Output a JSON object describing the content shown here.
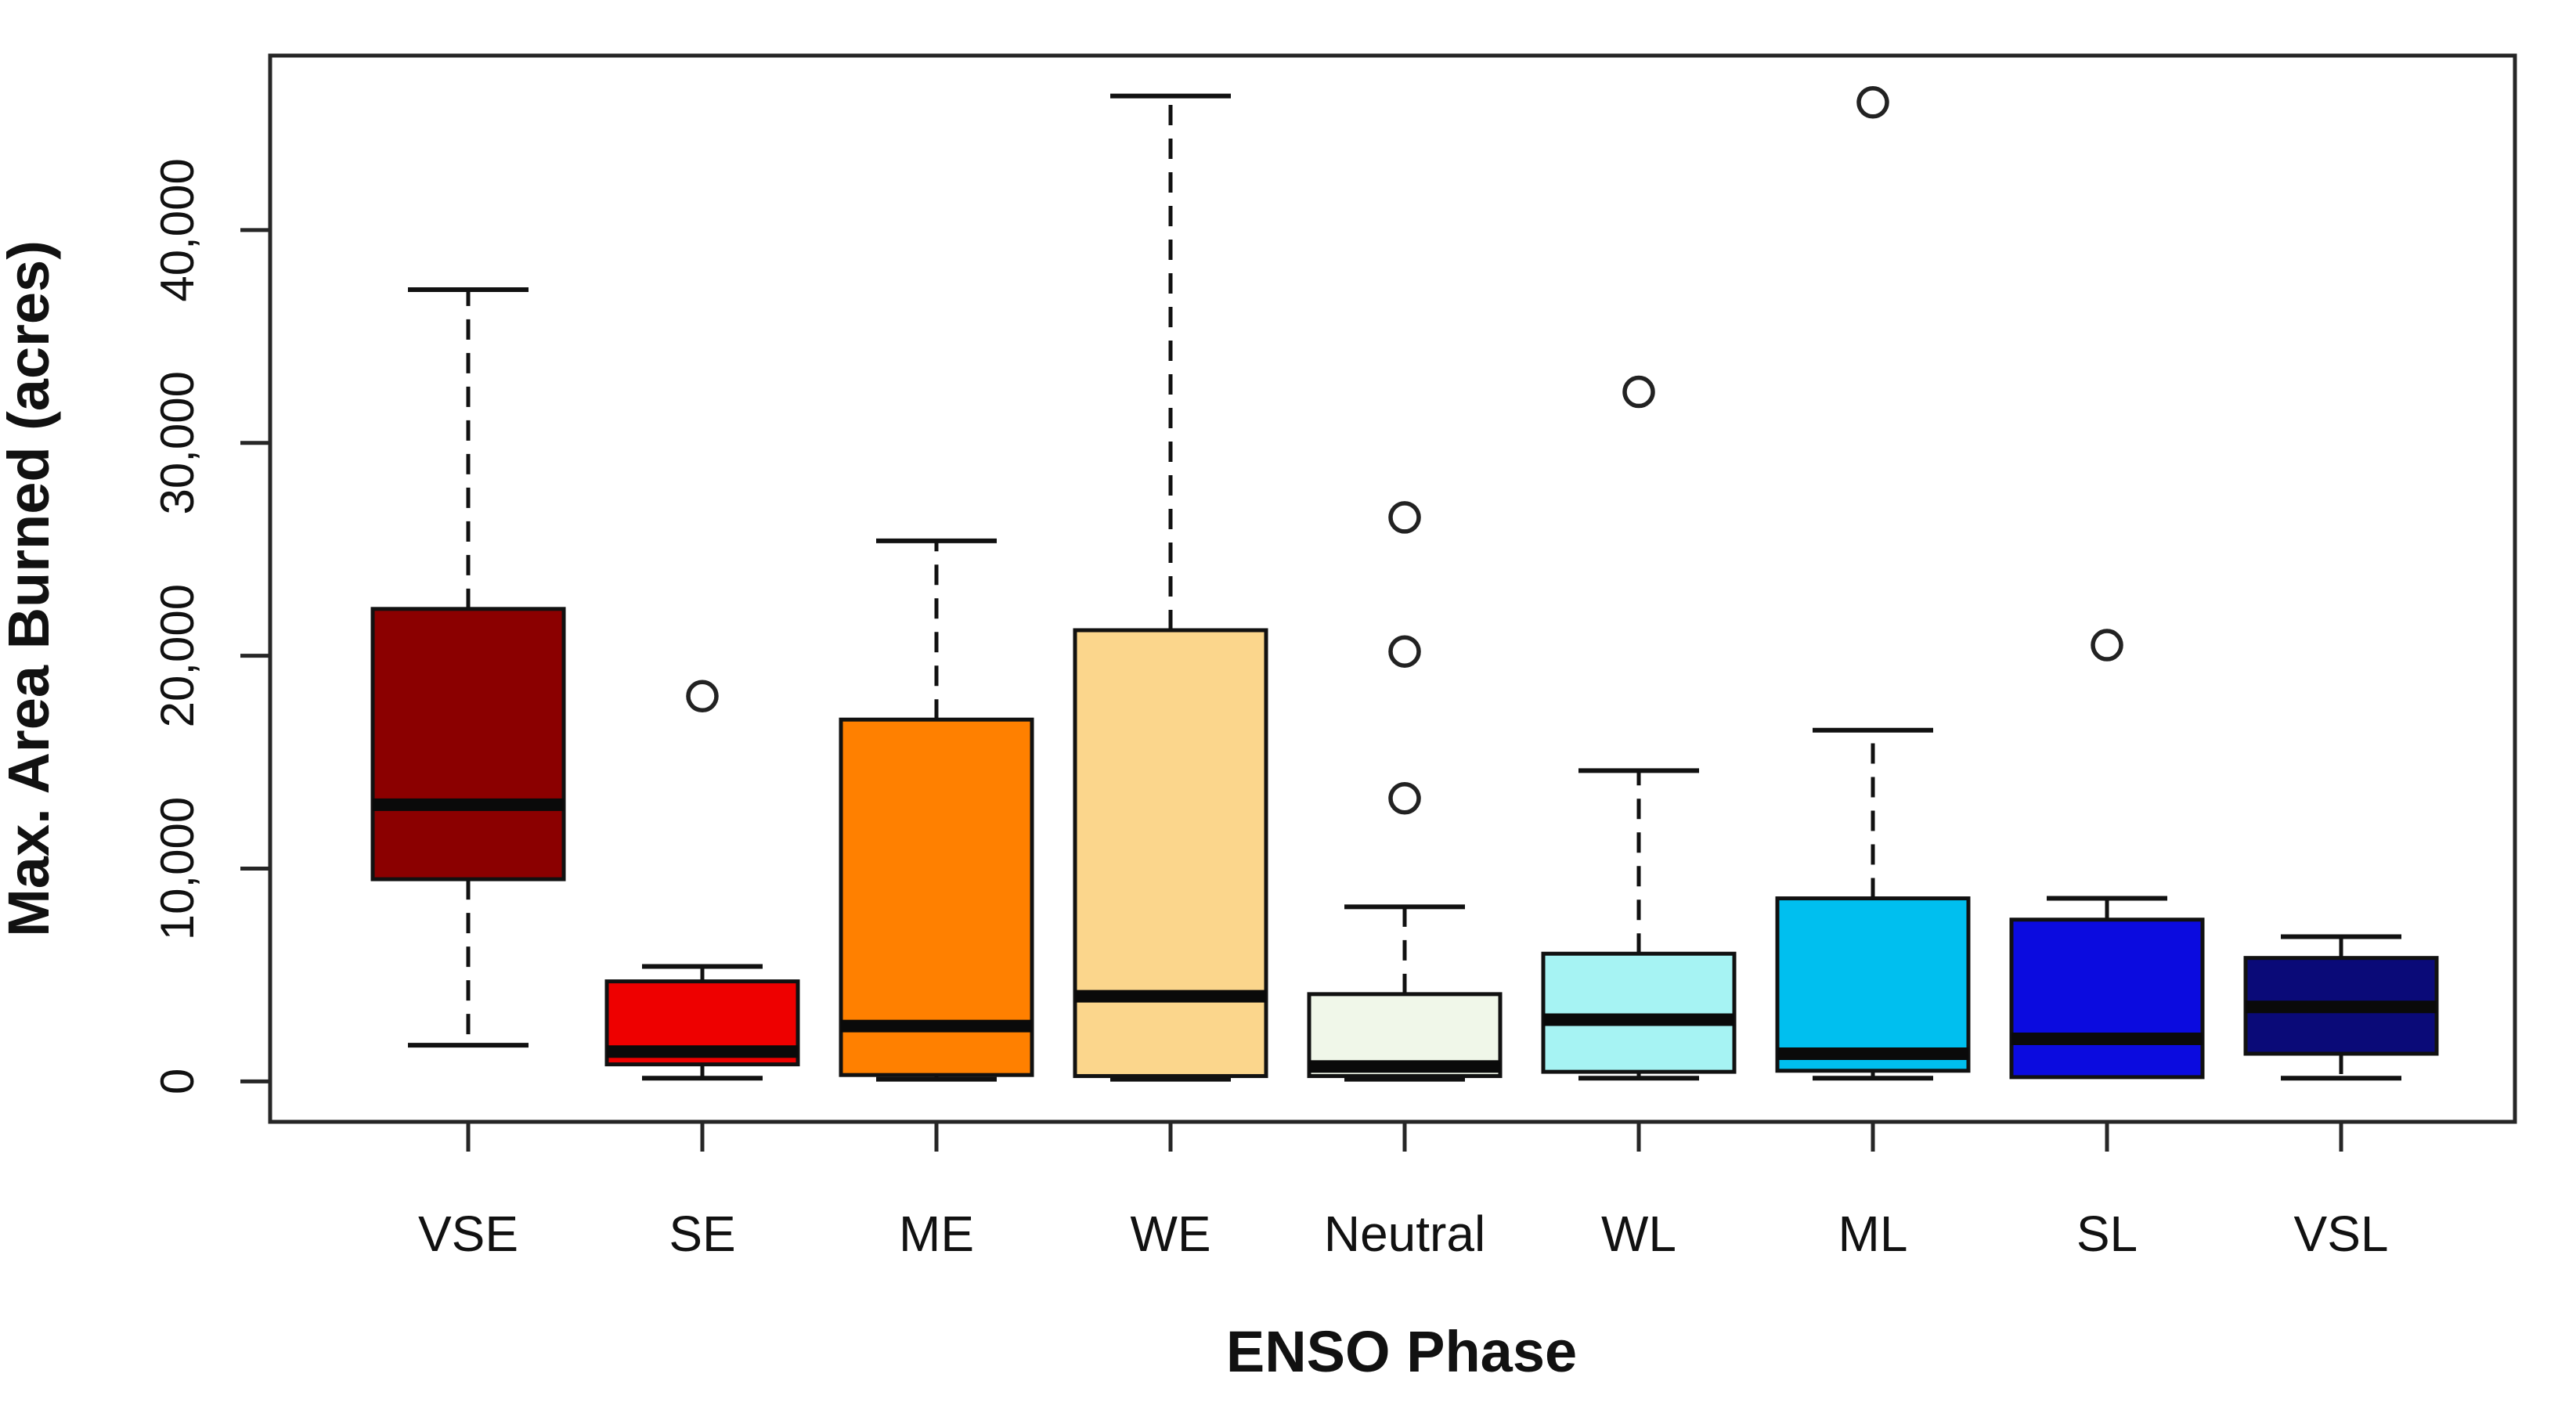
{
  "chart_data": {
    "type": "boxplot",
    "title": "",
    "xlabel": "ENSO Phase",
    "ylabel": "Max. Area Burned (acres)",
    "grid": false,
    "legend": "none",
    "ylim": [
      -1900,
      48200
    ],
    "y_ticks": [
      0,
      10000,
      20000,
      30000,
      40000
    ],
    "y_tick_labels": [
      "0",
      "10,000",
      "20,000",
      "30,000",
      "40,000"
    ],
    "categories": [
      "VSE",
      "SE",
      "ME",
      "WE",
      "Neutral",
      "WL",
      "ML",
      "SL",
      "VSL"
    ],
    "series": [
      {
        "category": "VSE",
        "color": "#8B0000",
        "whisker_low": 1700,
        "q1": 9500,
        "median": 13000,
        "q3": 22200,
        "whisker_high": 37200,
        "outliers": []
      },
      {
        "category": "SE",
        "color": "#EE0000",
        "whisker_low": 150,
        "q1": 800,
        "median": 1400,
        "q3": 4700,
        "whisker_high": 5400,
        "outliers": [
          18100
        ]
      },
      {
        "category": "ME",
        "color": "#FF8000",
        "whisker_low": 100,
        "q1": 300,
        "median": 2600,
        "q3": 17000,
        "whisker_high": 25400,
        "outliers": []
      },
      {
        "category": "WE",
        "color": "#FBD68C",
        "whisker_low": 100,
        "q1": 250,
        "median": 4000,
        "q3": 21200,
        "whisker_high": 46300,
        "outliers": []
      },
      {
        "category": "Neutral",
        "color": "#F0F7E9",
        "whisker_low": 100,
        "q1": 250,
        "median": 700,
        "q3": 4100,
        "whisker_high": 8200,
        "outliers": [
          13300,
          20200,
          26500
        ]
      },
      {
        "category": "WL",
        "color": "#A6F3F3",
        "whisker_low": 150,
        "q1": 450,
        "median": 2900,
        "q3": 6000,
        "whisker_high": 14600,
        "outliers": [
          32400
        ]
      },
      {
        "category": "ML",
        "color": "#00BFEF",
        "whisker_low": 150,
        "q1": 500,
        "median": 1300,
        "q3": 8600,
        "whisker_high": 16500,
        "outliers": [
          46000
        ]
      },
      {
        "category": "SL",
        "color": "#0B0BDF",
        "whisker_low": 200,
        "q1": 200,
        "median": 2000,
        "q3": 7600,
        "whisker_high": 8600,
        "outliers": [
          20500
        ]
      },
      {
        "category": "VSL",
        "color": "#0A0A78",
        "whisker_low": 150,
        "q1": 1300,
        "median": 3500,
        "q3": 5800,
        "whisker_high": 6800,
        "outliers": []
      }
    ],
    "style": {
      "box_line_color": "#111111",
      "axis_line_color": "#262626",
      "median_color": "#0a0a0a",
      "background": "#ffffff"
    }
  }
}
